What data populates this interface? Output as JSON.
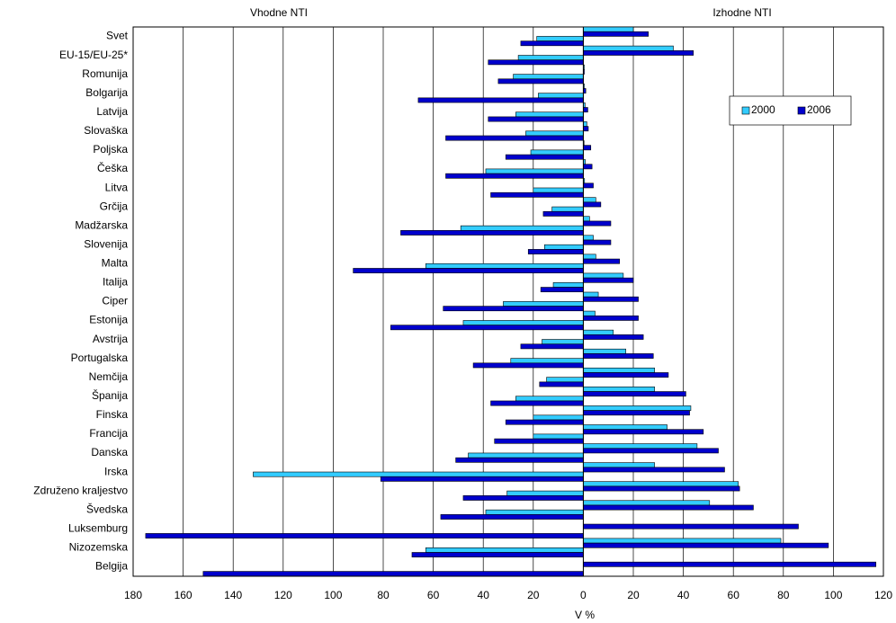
{
  "chart_data": {
    "type": "butterfly-bar",
    "left_label": "Vhodne NTI",
    "right_label": "Izhodne NTI",
    "x_label": "V %",
    "categories": [
      "Svet",
      "EU-15/EU-25*",
      "Romunija",
      "Bolgarija",
      "Latvija",
      "Slovaška",
      "Poljska",
      "Češka",
      "Litva",
      "Grčija",
      "Madžarska",
      "Slovenija",
      "Malta",
      "Italija",
      "Ciper",
      "Estonija",
      "Avstrija",
      "Portugalska",
      "Nemčija",
      "Španija",
      "Finska",
      "Francija",
      "Danska",
      "Irska",
      "Združeno kraljestvo",
      "Švedska",
      "Luksemburg",
      "Nizozemska",
      "Belgija"
    ],
    "series": [
      {
        "name": "2000",
        "color": "#33ccff",
        "values": [
          20,
          36,
          0.4,
          0.4,
          0.7,
          1.4,
          0.3,
          0.8,
          0.5,
          5,
          2.5,
          4,
          5,
          16,
          6,
          4.7,
          12,
          17,
          28.5,
          28.5,
          43,
          33.5,
          45.5,
          28.5,
          62,
          50.5,
          null,
          79,
          null
        ],
        "inward": [
          -18.6,
          -26,
          -28,
          -18,
          -27,
          -23,
          -21,
          -39,
          -20,
          -12.5,
          -49,
          -15.5,
          -63,
          -12,
          -32,
          -48,
          -16.5,
          -29,
          -14.7,
          -27,
          -20,
          -20,
          -46,
          -132,
          -30.5,
          -39,
          null,
          -63,
          null
        ]
      },
      {
        "name": "2006",
        "color": "#0000cc",
        "values": [
          26,
          44,
          0.4,
          1,
          1.8,
          2,
          3,
          3.5,
          4,
          7,
          11,
          11,
          14.5,
          20,
          22,
          22,
          24,
          28,
          34,
          41,
          42.5,
          48,
          54,
          56.5,
          62.5,
          68,
          86,
          98,
          117
        ],
        "inward": [
          -25,
          -38,
          -34,
          -66,
          -38,
          -55,
          -31,
          -55,
          -37,
          -16,
          -73,
          -22,
          -92,
          -17,
          -56,
          -77,
          -25,
          -44,
          -17.5,
          -37,
          -31,
          -35.5,
          -51,
          -81,
          -48,
          -57,
          -175,
          -68.5,
          -152
        ]
      }
    ],
    "xlim": [
      -180,
      120
    ],
    "xticks": [
      {
        "value": -180,
        "label": "180"
      },
      {
        "value": -160,
        "label": "160"
      },
      {
        "value": -140,
        "label": "140"
      },
      {
        "value": -120,
        "label": "120"
      },
      {
        "value": -100,
        "label": "100"
      },
      {
        "value": -80,
        "label": "80"
      },
      {
        "value": -60,
        "label": "60"
      },
      {
        "value": -40,
        "label": "40"
      },
      {
        "value": -20,
        "label": "20"
      },
      0,
      20,
      40,
      60,
      80,
      100,
      120
    ],
    "grid": true,
    "legend": "upper-right"
  }
}
